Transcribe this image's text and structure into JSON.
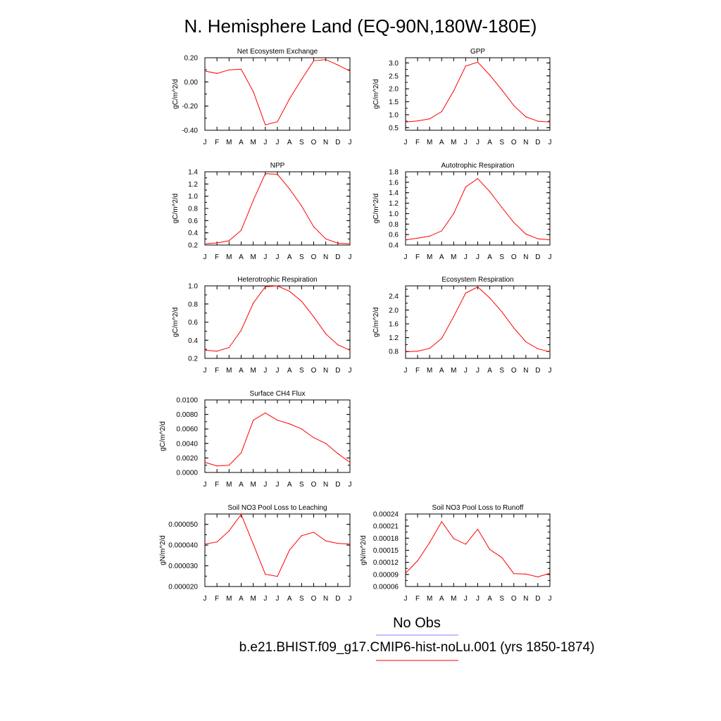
{
  "title": "N. Hemisphere Land (EQ-90N,180W-180E)",
  "months": [
    "J",
    "F",
    "M",
    "A",
    "M",
    "J",
    "J",
    "A",
    "S",
    "O",
    "N",
    "D",
    "J"
  ],
  "legend": {
    "obs_label": "No Obs",
    "obs_color": "#8080ff",
    "model_label": "b.e21.BHIST.f09_g17.CMIP6-hist-noLu.001 (yrs 1850-1874)",
    "model_color": "#ff0000"
  },
  "chart_data": [
    {
      "type": "line",
      "title": "Net Ecosystem Exchange",
      "ylabel": "gC/m^2/d",
      "ylim": [
        -0.4,
        0.2
      ],
      "yticks": [
        -0.4,
        -0.2,
        0.0,
        0.2
      ],
      "ytick_labels": [
        "-0.40",
        "-0.20",
        "0.00",
        "0.20"
      ],
      "x": [
        "J",
        "F",
        "M",
        "A",
        "M",
        "J",
        "J",
        "A",
        "S",
        "O",
        "N",
        "D",
        "J"
      ],
      "values": [
        0.09,
        0.07,
        0.1,
        0.105,
        -0.08,
        -0.355,
        -0.33,
        -0.14,
        0.02,
        0.175,
        0.185,
        0.14,
        0.09
      ],
      "color": "#ff0000"
    },
    {
      "type": "line",
      "title": "GPP",
      "ylabel": "gC/m^2/d",
      "ylim": [
        0.4,
        3.2
      ],
      "yticks": [
        0.5,
        1.0,
        1.5,
        2.0,
        2.5,
        3.0
      ],
      "ytick_labels": [
        "0.5",
        "1.0",
        "1.5",
        "2.0",
        "2.5",
        "3.0"
      ],
      "x": [
        "J",
        "F",
        "M",
        "A",
        "M",
        "J",
        "J",
        "A",
        "S",
        "O",
        "N",
        "D",
        "J"
      ],
      "values": [
        0.72,
        0.76,
        0.84,
        1.12,
        1.92,
        2.88,
        3.03,
        2.53,
        1.96,
        1.35,
        0.92,
        0.75,
        0.72
      ],
      "color": "#ff0000"
    },
    {
      "type": "line",
      "title": "NPP",
      "ylabel": "gC/m^2/d",
      "ylim": [
        0.2,
        1.4
      ],
      "yticks": [
        0.2,
        0.4,
        0.6,
        0.8,
        1.0,
        1.2,
        1.4
      ],
      "ytick_labels": [
        "0.2",
        "0.4",
        "0.6",
        "0.8",
        "1.0",
        "1.2",
        "1.4"
      ],
      "x": [
        "J",
        "F",
        "M",
        "A",
        "M",
        "J",
        "J",
        "A",
        "S",
        "O",
        "N",
        "D",
        "J"
      ],
      "values": [
        0.22,
        0.235,
        0.27,
        0.44,
        0.93,
        1.37,
        1.36,
        1.12,
        0.84,
        0.5,
        0.3,
        0.23,
        0.22
      ],
      "color": "#ff0000"
    },
    {
      "type": "line",
      "title": "Autotrophic Respiration",
      "ylabel": "gC/m^2/d",
      "ylim": [
        0.4,
        1.8
      ],
      "yticks": [
        0.4,
        0.6,
        0.8,
        1.0,
        1.2,
        1.4,
        1.6,
        1.8
      ],
      "ytick_labels": [
        "0.4",
        "0.6",
        "0.8",
        "1.0",
        "1.2",
        "1.4",
        "1.6",
        "1.8"
      ],
      "x": [
        "J",
        "F",
        "M",
        "A",
        "M",
        "J",
        "J",
        "A",
        "S",
        "O",
        "N",
        "D",
        "J"
      ],
      "values": [
        0.5,
        0.53,
        0.57,
        0.67,
        1.0,
        1.51,
        1.67,
        1.42,
        1.12,
        0.83,
        0.61,
        0.52,
        0.5
      ],
      "color": "#ff0000"
    },
    {
      "type": "line",
      "title": "Heterotrophic Respiration",
      "ylabel": "gC/m^2/d",
      "ylim": [
        0.2,
        1.0
      ],
      "yticks": [
        0.2,
        0.4,
        0.6,
        0.8,
        1.0
      ],
      "ytick_labels": [
        "0.2",
        "0.4",
        "0.6",
        "0.8",
        "1.0"
      ],
      "x": [
        "J",
        "F",
        "M",
        "A",
        "M",
        "J",
        "J",
        "A",
        "S",
        "O",
        "N",
        "D",
        "J"
      ],
      "values": [
        0.29,
        0.28,
        0.32,
        0.51,
        0.81,
        0.99,
        1.0,
        0.94,
        0.83,
        0.66,
        0.47,
        0.35,
        0.29
      ],
      "color": "#ff0000"
    },
    {
      "type": "line",
      "title": "Ecosystem Respiration",
      "ylabel": "gC/m^2/d",
      "ylim": [
        0.6,
        2.7
      ],
      "yticks": [
        0.8,
        1.2,
        1.6,
        2.0,
        2.4
      ],
      "ytick_labels": [
        "0.8",
        "1.2",
        "1.6",
        "2.0",
        "2.4"
      ],
      "x": [
        "J",
        "F",
        "M",
        "A",
        "M",
        "J",
        "J",
        "A",
        "S",
        "O",
        "N",
        "D",
        "J"
      ],
      "values": [
        0.79,
        0.81,
        0.89,
        1.18,
        1.81,
        2.49,
        2.67,
        2.35,
        1.95,
        1.48,
        1.08,
        0.88,
        0.79
      ],
      "color": "#ff0000"
    },
    {
      "type": "line",
      "title": "Surface CH4 Flux",
      "ylabel": "gC/m^2/d",
      "ylim": [
        0.0,
        0.01
      ],
      "yticks": [
        0.0,
        0.002,
        0.004,
        0.006,
        0.008,
        0.01
      ],
      "ytick_labels": [
        "0.0000",
        "0.0020",
        "0.0040",
        "0.0060",
        "0.0080",
        "0.0100"
      ],
      "x": [
        "J",
        "F",
        "M",
        "A",
        "M",
        "J",
        "J",
        "A",
        "S",
        "O",
        "N",
        "D",
        "J"
      ],
      "values": [
        0.0014,
        0.0009,
        0.001,
        0.0027,
        0.0072,
        0.0082,
        0.0072,
        0.0067,
        0.006,
        0.0048,
        0.004,
        0.0026,
        0.0014
      ],
      "color": "#ff0000"
    },
    {
      "type": "line",
      "title": "Soil NO3 Pool Loss to Leaching",
      "ylabel": "gN/m^2/d",
      "ylim": [
        2e-05,
        5.5e-05
      ],
      "yticks": [
        2e-05,
        3e-05,
        4e-05,
        5e-05
      ],
      "ytick_labels": [
        "0.000020",
        "0.000030",
        "0.000040",
        "0.000050"
      ],
      "x": [
        "J",
        "F",
        "M",
        "A",
        "M",
        "J",
        "J",
        "A",
        "S",
        "O",
        "N",
        "D",
        "J"
      ],
      "values": [
        4.05e-05,
        4.15e-05,
        4.68e-05,
        5.48e-05,
        4.05e-05,
        2.59e-05,
        2.49e-05,
        3.76e-05,
        4.45e-05,
        4.62e-05,
        4.2e-05,
        4.08e-05,
        4.05e-05
      ],
      "color": "#ff0000"
    },
    {
      "type": "line",
      "title": "Soil NO3 Pool Loss to Runoff",
      "ylabel": "gN/m^2/d",
      "ylim": [
        6e-05,
        0.00024
      ],
      "yticks": [
        6e-05,
        9e-05,
        0.00012,
        0.00015,
        0.00018,
        0.00021,
        0.00024
      ],
      "ytick_labels": [
        "0.00006",
        "0.00009",
        "0.00012",
        "0.00015",
        "0.00018",
        "0.00021",
        "0.00024"
      ],
      "x": [
        "J",
        "F",
        "M",
        "A",
        "M",
        "J",
        "J",
        "A",
        "S",
        "O",
        "N",
        "D",
        "J"
      ],
      "values": [
        9.3e-05,
        0.000124,
        0.000169,
        0.000221,
        0.000179,
        0.000165,
        0.000202,
        0.000152,
        0.000132,
        9.2e-05,
        9.1e-05,
        8.4e-05,
        9.3e-05
      ],
      "color": "#ff0000"
    }
  ]
}
